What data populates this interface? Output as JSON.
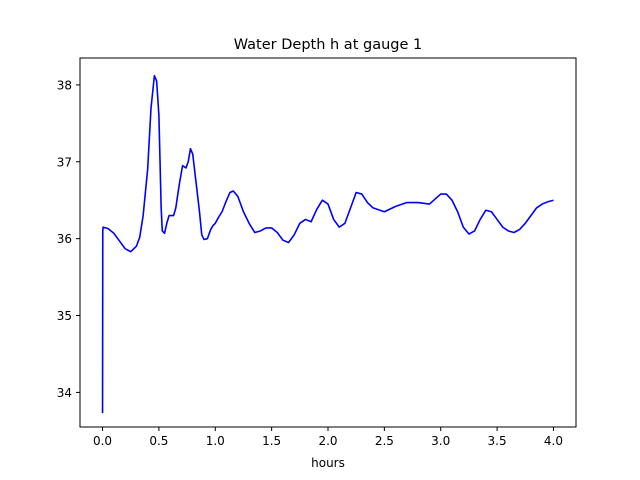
{
  "chart_data": {
    "type": "line",
    "title": "Water Depth h at gauge 1",
    "xlabel": "hours",
    "ylabel": "",
    "xlim": [
      -0.2,
      4.2
    ],
    "ylim": [
      33.55,
      38.35
    ],
    "xticks": [
      0.0,
      0.5,
      1.0,
      1.5,
      2.0,
      2.5,
      3.0,
      3.5,
      4.0
    ],
    "xtick_labels": [
      "0.0",
      "0.5",
      "1.0",
      "1.5",
      "2.0",
      "2.5",
      "3.0",
      "3.5",
      "4.0"
    ],
    "yticks": [
      34,
      35,
      36,
      37,
      38
    ],
    "ytick_labels": [
      "34",
      "35",
      "36",
      "37",
      "38"
    ],
    "grid": false,
    "series": [
      {
        "color": "#0000ff",
        "x": [
          0.0,
          0.002,
          0.005,
          0.05,
          0.1,
          0.15,
          0.2,
          0.25,
          0.3,
          0.33,
          0.36,
          0.4,
          0.43,
          0.46,
          0.48,
          0.5,
          0.51,
          0.52,
          0.53,
          0.55,
          0.57,
          0.59,
          0.61,
          0.63,
          0.65,
          0.68,
          0.71,
          0.74,
          0.76,
          0.78,
          0.8,
          0.82,
          0.84,
          0.86,
          0.88,
          0.9,
          0.93,
          0.96,
          0.98,
          1.0,
          1.03,
          1.06,
          1.1,
          1.13,
          1.16,
          1.2,
          1.25,
          1.3,
          1.35,
          1.4,
          1.45,
          1.5,
          1.55,
          1.6,
          1.65,
          1.7,
          1.75,
          1.8,
          1.85,
          1.9,
          1.95,
          2.0,
          2.05,
          2.1,
          2.15,
          2.2,
          2.25,
          2.3,
          2.35,
          2.4,
          2.5,
          2.6,
          2.7,
          2.8,
          2.9,
          3.0,
          3.05,
          3.1,
          3.15,
          3.2,
          3.25,
          3.3,
          3.35,
          3.4,
          3.45,
          3.5,
          3.55,
          3.6,
          3.65,
          3.7,
          3.75,
          3.8,
          3.85,
          3.9,
          3.95,
          4.0
        ],
        "y": [
          33.73,
          36.1,
          36.15,
          36.13,
          36.07,
          35.97,
          35.87,
          35.83,
          35.9,
          36.02,
          36.3,
          36.9,
          37.7,
          38.12,
          38.05,
          37.6,
          37.0,
          36.4,
          36.1,
          36.07,
          36.2,
          36.3,
          36.3,
          36.3,
          36.4,
          36.7,
          36.95,
          36.92,
          37.0,
          37.17,
          37.1,
          36.85,
          36.6,
          36.35,
          36.05,
          35.99,
          36.0,
          36.12,
          36.17,
          36.2,
          36.28,
          36.35,
          36.5,
          36.6,
          36.62,
          36.55,
          36.35,
          36.2,
          36.08,
          36.1,
          36.14,
          36.14,
          36.08,
          35.98,
          35.95,
          36.05,
          36.2,
          36.25,
          36.22,
          36.38,
          36.5,
          36.45,
          36.25,
          36.15,
          36.2,
          36.4,
          36.6,
          36.58,
          36.47,
          36.4,
          36.35,
          36.42,
          36.47,
          36.47,
          36.45,
          36.58,
          36.58,
          36.5,
          36.35,
          36.15,
          36.06,
          36.1,
          36.25,
          36.37,
          36.35,
          36.25,
          36.15,
          36.1,
          36.08,
          36.12,
          36.2,
          36.3,
          36.4,
          36.45,
          36.48,
          36.5
        ]
      }
    ]
  }
}
